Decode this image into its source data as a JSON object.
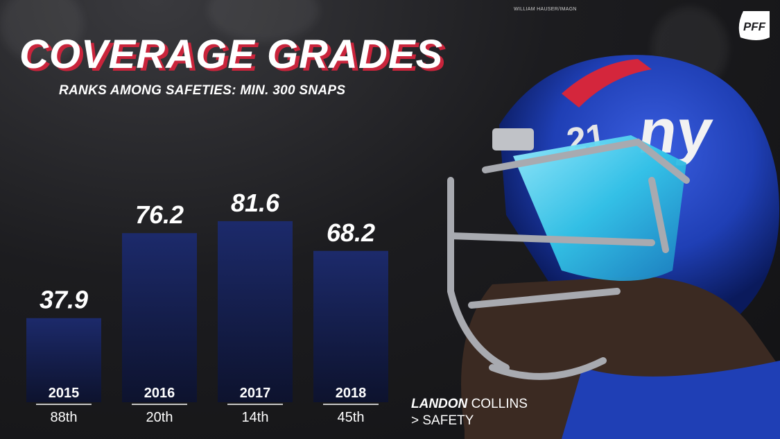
{
  "credit": "WILLIAM HAUSER/IMAGN",
  "logo": {
    "icon": "pff-logo-icon",
    "text": "PFF"
  },
  "player": {
    "first_name": "LANDON",
    "last_name": "COLLINS",
    "position": "> SAFETY"
  },
  "helmet": {
    "icon": "giants-helmet-icon",
    "number": "21",
    "team_logo": "ny"
  },
  "colors": {
    "bar_top": "#1c2a6b",
    "bar_bottom": "#0d1330",
    "title_shadow": "#c9243b",
    "helmet_blue": "#1f3fb5"
  },
  "chart_data": {
    "type": "bar",
    "title": "COVERAGE GRADES",
    "subtitle": "RANKS AMONG SAFETIES: MIN. 300 SNAPS",
    "categories": [
      "2015",
      "2016",
      "2017",
      "2018"
    ],
    "values": [
      37.9,
      76.2,
      81.6,
      68.2
    ],
    "value_labels": [
      "37.9",
      "76.2",
      "81.6",
      "68.2"
    ],
    "ranks": [
      "88th",
      "20th",
      "14th",
      "45th"
    ],
    "xlabel": "",
    "ylabel": "",
    "ylim": [
      0,
      100
    ],
    "grid": false,
    "legend": "none"
  }
}
